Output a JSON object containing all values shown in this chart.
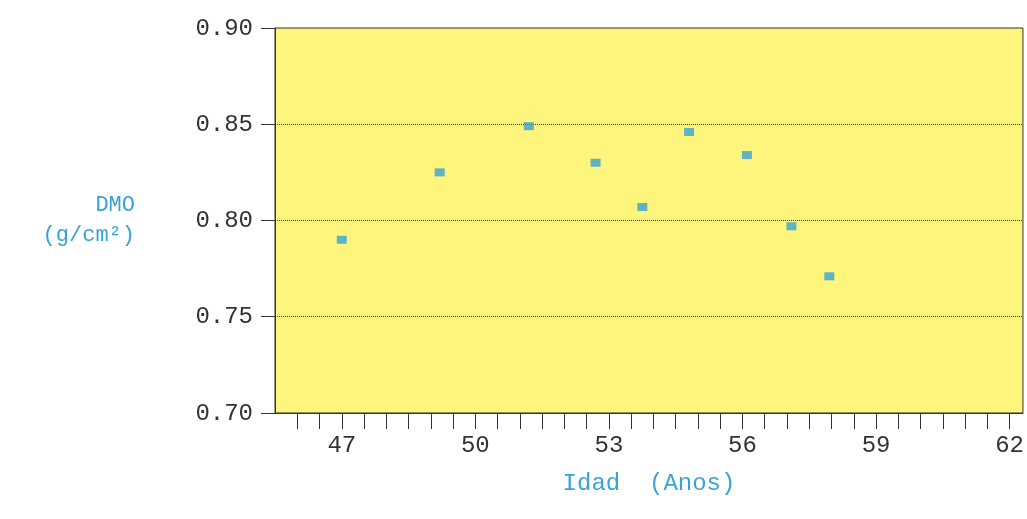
{
  "chart_data": {
    "type": "scatter",
    "xlabel": "Idad  (Anos)",
    "ylabel": "DMO (g/cm²)",
    "x": [
      47.0,
      49.2,
      51.2,
      52.7,
      53.75,
      54.8,
      56.1,
      57.1,
      57.95
    ],
    "series": [
      {
        "color": "#3aa3d6",
        "values": [
          0.79,
          0.825,
          0.849,
          0.83,
          0.807,
          0.846,
          0.834,
          0.797,
          0.771
        ]
      }
    ],
    "xlim": [
      45.5,
      62.3
    ],
    "xticks": [
      {
        "value": 46,
        "label": null
      },
      {
        "value": 46.5,
        "label": null
      },
      47,
      {
        "value": 47.5,
        "label": null
      },
      {
        "value": 48,
        "label": null
      },
      {
        "value": 48.5,
        "label": null
      },
      {
        "value": 49,
        "label": null
      },
      {
        "value": 49.5,
        "label": null
      },
      50,
      {
        "value": 50.5,
        "label": null
      },
      {
        "value": 51,
        "label": null
      },
      {
        "value": 51.5,
        "label": null
      },
      {
        "value": 52,
        "label": null
      },
      {
        "value": 52.5,
        "label": null
      },
      53,
      {
        "value": 53.5,
        "label": null
      },
      {
        "value": 54,
        "label": null
      },
      {
        "value": 54.5,
        "label": null
      },
      {
        "value": 55,
        "label": null
      },
      {
        "value": 55.5,
        "label": null
      },
      56,
      {
        "value": 56.5,
        "label": null
      },
      {
        "value": 57,
        "label": null
      },
      {
        "value": 57.5,
        "label": null
      },
      {
        "value": 58,
        "label": null
      },
      {
        "value": 58.5,
        "label": null
      },
      59,
      {
        "value": 59.5,
        "label": null
      },
      {
        "value": 60,
        "label": null
      },
      {
        "value": 60.5,
        "label": null
      },
      {
        "value": 61,
        "label": null
      },
      {
        "value": 61.5,
        "label": null
      },
      62
    ],
    "ylim": [
      0.7,
      0.9
    ],
    "yticks": [
      {
        "value": 0.7,
        "label": "0.70"
      },
      0.75,
      {
        "value": 0.8,
        "label": "0.80"
      },
      0.85,
      {
        "value": 0.9,
        "label": "0.90"
      }
    ],
    "grid": "y",
    "marker": "square"
  }
}
